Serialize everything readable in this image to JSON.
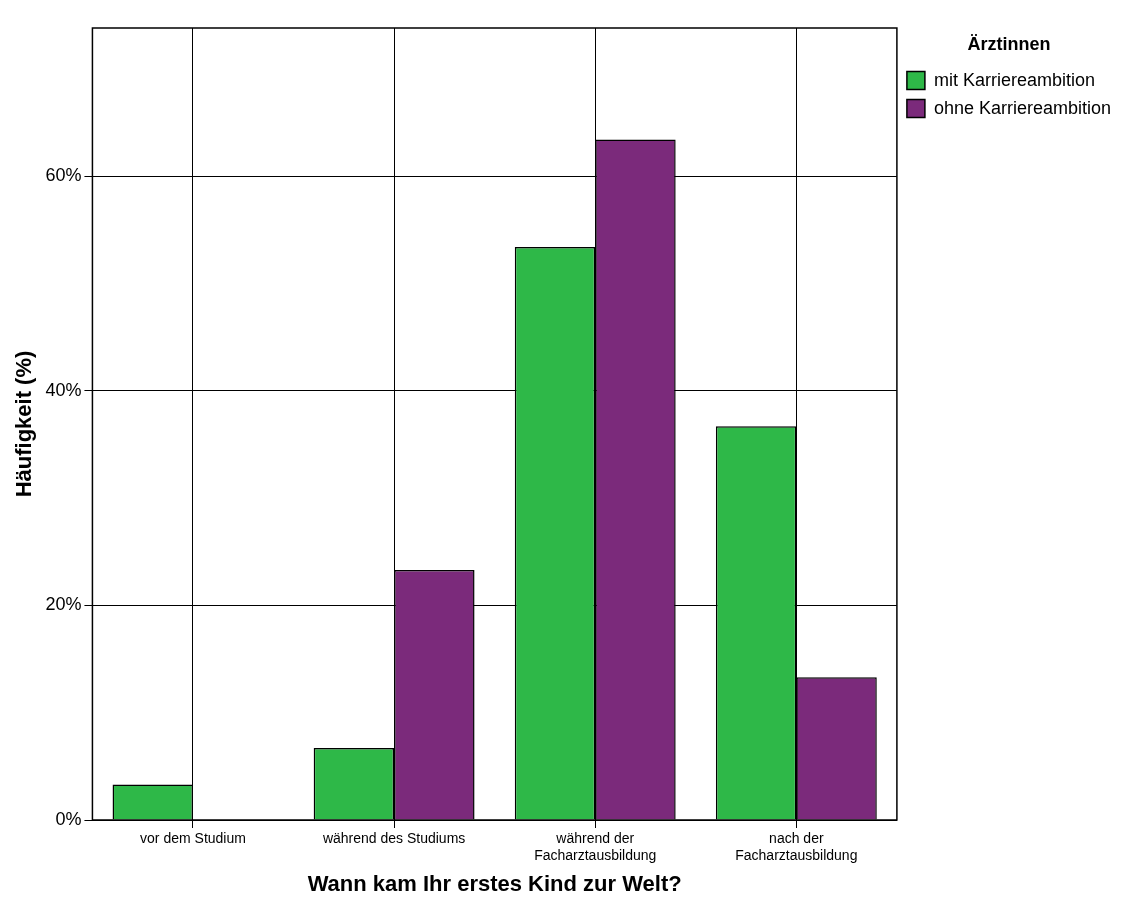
{
  "chart_data": {
    "type": "bar",
    "xlabel": "Wann kam Ihr erstes Kind zur Welt?",
    "ylabel": "Häufigkeit (%)",
    "legend_title": "Ärztinnen",
    "categories": [
      "vor dem Studium",
      "während des Studiums",
      "während der Facharztausbildung",
      "nach der Facharztausbildung"
    ],
    "series": [
      {
        "name": "mit Karriereambition",
        "color": "#2eb848",
        "values": [
          3.3,
          6.7,
          53.4,
          36.7
        ]
      },
      {
        "name": "ohne Karriereambition",
        "color": "#7b2a7b",
        "values": [
          0,
          23.3,
          63.4,
          13.3
        ]
      }
    ],
    "ylim": [
      0,
      73.8
    ],
    "yticks": [
      {
        "value": 0,
        "label": "0%"
      },
      {
        "value": 20,
        "label": "20%"
      },
      {
        "value": 40,
        "label": "40%"
      },
      {
        "value": 60,
        "label": "60%"
      }
    ],
    "grid": true,
    "legend": "top right"
  }
}
